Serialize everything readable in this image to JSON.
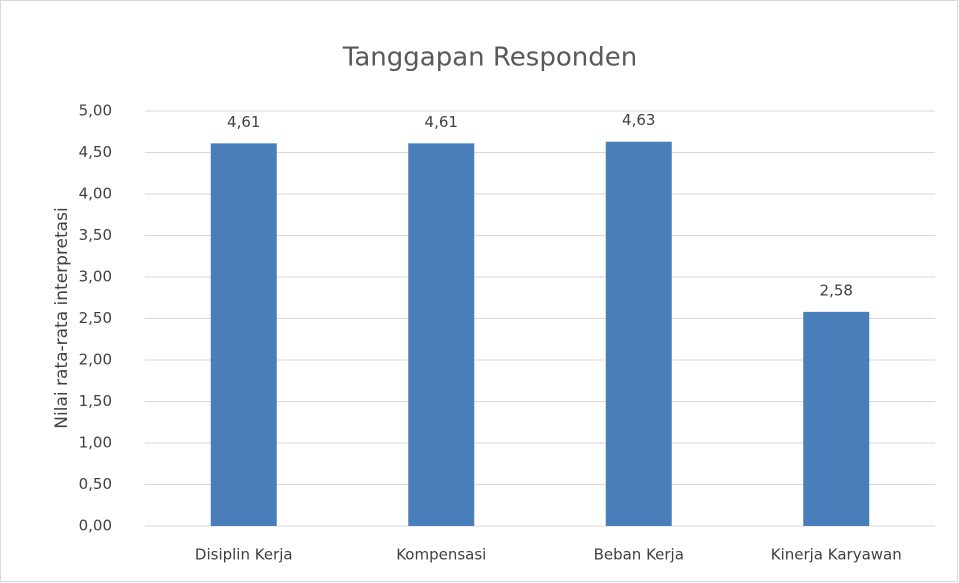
{
  "chart_data": {
    "type": "bar",
    "title": "Tanggapan Responden",
    "y_label": "Nilai rata-rata interpretasi",
    "categories": [
      "Disiplin Kerja",
      "Kompensasi",
      "Beban Kerja",
      "Kinerja Karyawan"
    ],
    "values": [
      4.61,
      4.61,
      4.63,
      2.58
    ],
    "value_labels": [
      "4,61",
      "4,61",
      "4,63",
      "2,58"
    ],
    "color": "#4a7ebb",
    "ylim": [
      0,
      5
    ],
    "yticks": [
      {
        "value": 0,
        "label": "0,00"
      },
      {
        "value": 0.5,
        "label": "0,50"
      },
      {
        "value": 1,
        "label": "1,00"
      },
      {
        "value": 1.5,
        "label": "1,50"
      },
      {
        "value": 2,
        "label": "2,00"
      },
      {
        "value": 2.5,
        "label": "2,50"
      },
      {
        "value": 3,
        "label": "3,00"
      },
      {
        "value": 3.5,
        "label": "3,50"
      },
      {
        "value": 4,
        "label": "4,00"
      },
      {
        "value": 4.5,
        "label": "4,50"
      },
      {
        "value": 5,
        "label": "5,00"
      }
    ],
    "grid": true
  }
}
